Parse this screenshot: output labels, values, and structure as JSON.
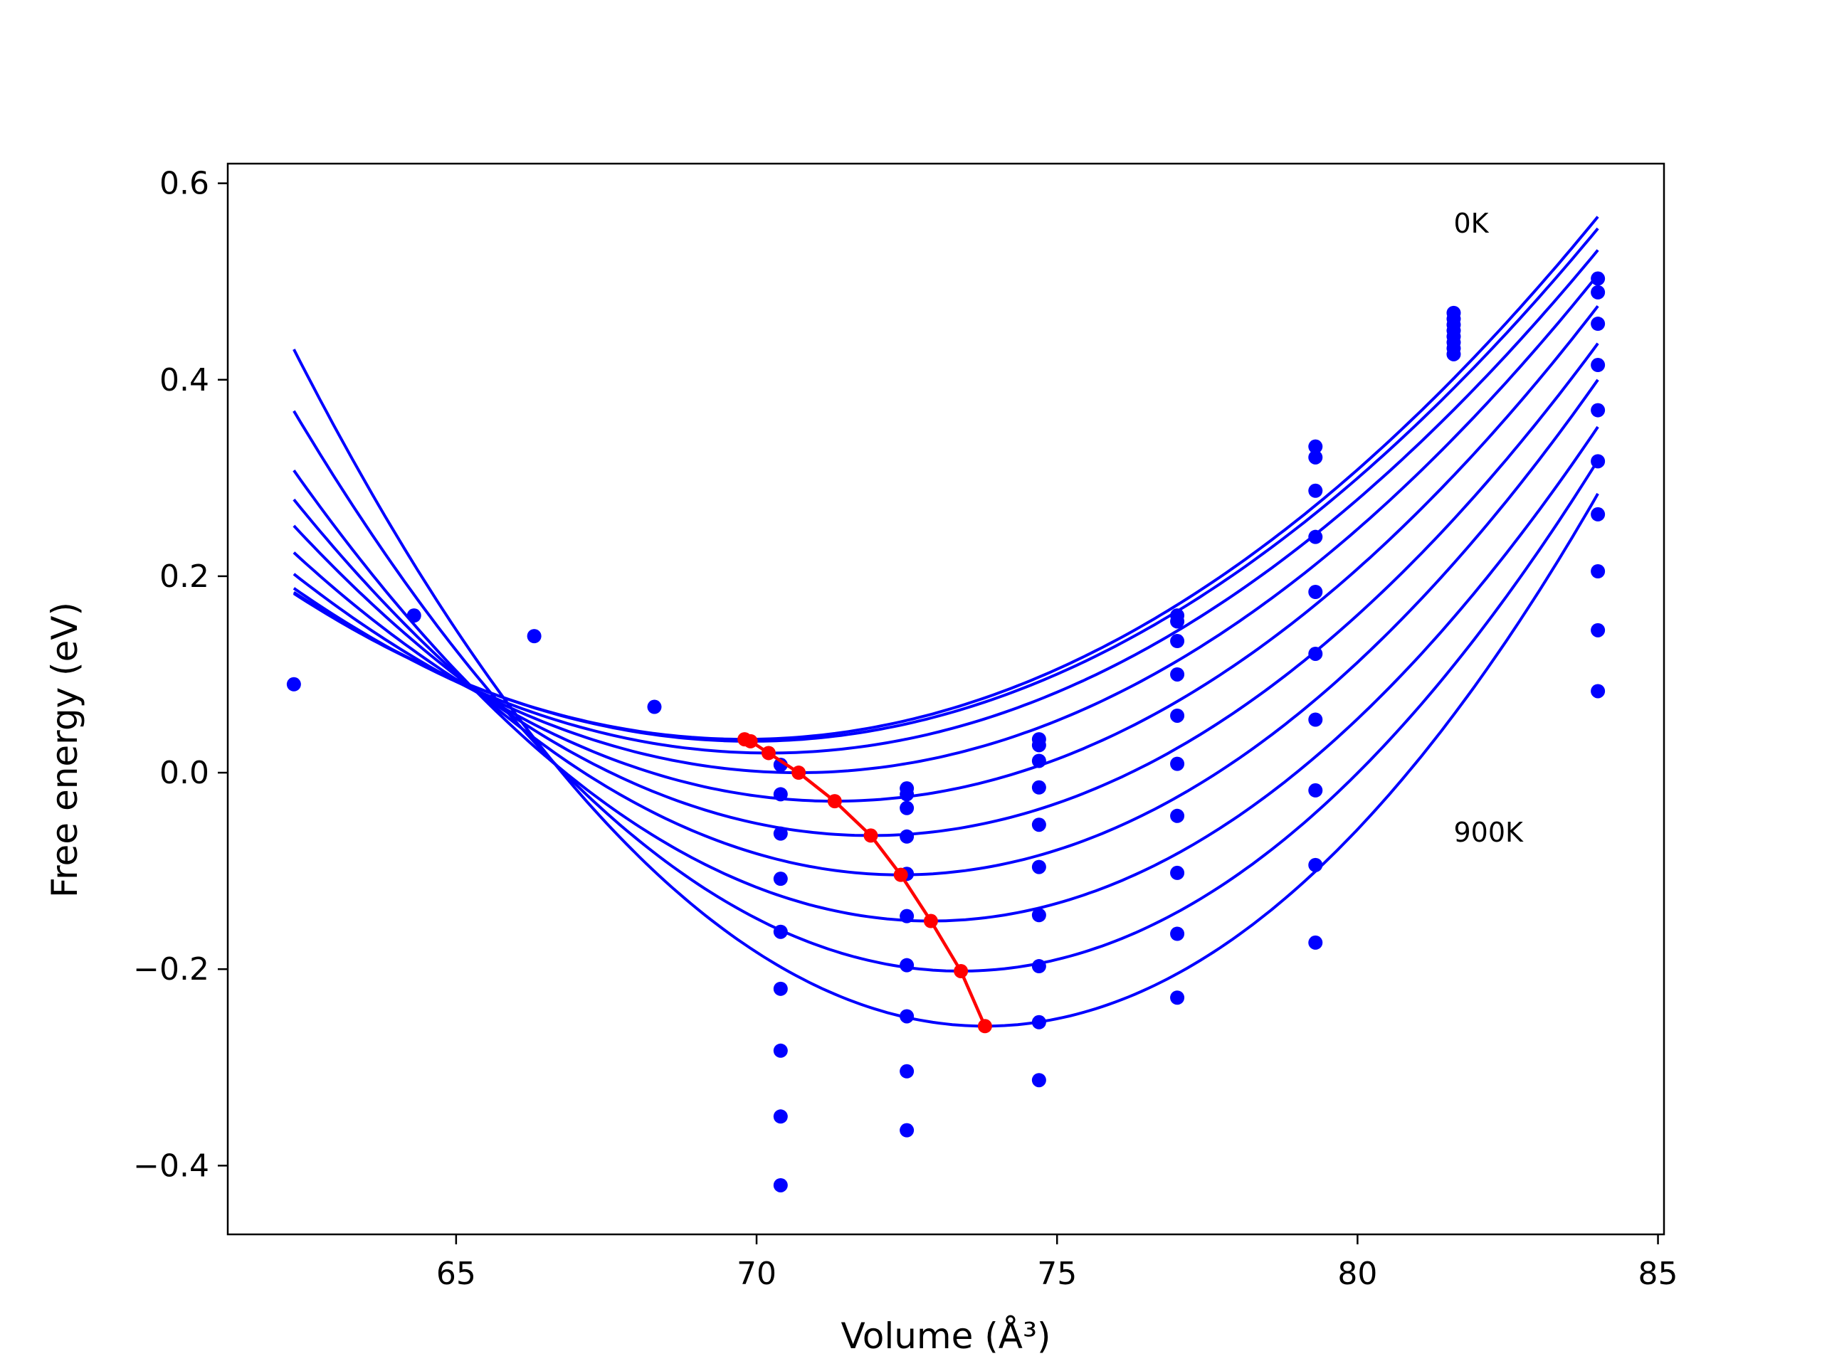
{
  "chart_data": {
    "type": "scatter",
    "xlabel": "Volume (Å³)",
    "ylabel": "Free energy (eV)",
    "xlim": [
      61.2,
      85.1
    ],
    "ylim": [
      -0.47,
      0.62
    ],
    "xticks": [
      {
        "value": 65,
        "label": "65"
      },
      {
        "value": 70,
        "label": "70"
      },
      {
        "value": 75,
        "label": "75"
      },
      {
        "value": 80,
        "label": "80"
      },
      {
        "value": 85,
        "label": "85"
      }
    ],
    "yticks": [
      {
        "value": -0.4,
        "label": "−0.4"
      },
      {
        "value": -0.2,
        "label": "−0.2"
      },
      {
        "value": 0.0,
        "label": "0.0"
      },
      {
        "value": 0.2,
        "label": "0.2"
      },
      {
        "value": 0.4,
        "label": "0.4"
      },
      {
        "value": 0.6,
        "label": "0.6"
      }
    ],
    "grid": false,
    "annotations": [
      {
        "text": "0K",
        "x": 81.6,
        "y": 0.56
      },
      {
        "text": "900K",
        "x": 81.6,
        "y": -0.06
      }
    ],
    "colors": {
      "fit_curves": "#0000ff",
      "points": "#0000ff",
      "minimum_path": "#ff0000"
    },
    "fit_curves": {
      "x_range": [
        62.3,
        84.0
      ],
      "curves": [
        {
          "min_x": 69.8,
          "min_y": 0.034,
          "y_at_84": 0.566
        },
        {
          "min_x": 69.9,
          "min_y": 0.032,
          "y_at_84": 0.554
        },
        {
          "min_x": 70.2,
          "min_y": 0.02,
          "y_at_84": 0.532
        },
        {
          "min_x": 70.7,
          "min_y": 0.0,
          "y_at_84": 0.507
        },
        {
          "min_x": 71.3,
          "min_y": -0.029,
          "y_at_84": 0.475
        },
        {
          "min_x": 71.9,
          "min_y": -0.064,
          "y_at_84": 0.437
        },
        {
          "min_x": 72.4,
          "min_y": -0.104,
          "y_at_84": 0.4
        },
        {
          "min_x": 72.9,
          "min_y": -0.151,
          "y_at_84": 0.352
        },
        {
          "min_x": 73.4,
          "min_y": -0.202,
          "y_at_84": 0.318
        },
        {
          "min_x": 73.8,
          "min_y": -0.258,
          "y_at_84": 0.284
        }
      ]
    },
    "points": [
      {
        "x": 62.3,
        "y": 0.09
      },
      {
        "x": 64.3,
        "y": 0.16
      },
      {
        "x": 66.3,
        "y": 0.139
      },
      {
        "x": 68.3,
        "y": 0.067
      },
      {
        "x": 70.4,
        "y": 0.008
      },
      {
        "x": 70.4,
        "y": -0.022
      },
      {
        "x": 70.4,
        "y": -0.062
      },
      {
        "x": 70.4,
        "y": -0.108
      },
      {
        "x": 70.4,
        "y": -0.162
      },
      {
        "x": 70.4,
        "y": -0.22
      },
      {
        "x": 70.4,
        "y": -0.283
      },
      {
        "x": 70.4,
        "y": -0.35
      },
      {
        "x": 70.4,
        "y": -0.42
      },
      {
        "x": 72.5,
        "y": -0.016
      },
      {
        "x": 72.5,
        "y": -0.022
      },
      {
        "x": 72.5,
        "y": -0.036
      },
      {
        "x": 72.5,
        "y": -0.065
      },
      {
        "x": 72.5,
        "y": -0.103
      },
      {
        "x": 72.5,
        "y": -0.146
      },
      {
        "x": 72.5,
        "y": -0.196
      },
      {
        "x": 72.5,
        "y": -0.248
      },
      {
        "x": 72.5,
        "y": -0.304
      },
      {
        "x": 72.5,
        "y": -0.364
      },
      {
        "x": 74.7,
        "y": 0.034
      },
      {
        "x": 74.7,
        "y": 0.028
      },
      {
        "x": 74.7,
        "y": 0.012
      },
      {
        "x": 74.7,
        "y": -0.015
      },
      {
        "x": 74.7,
        "y": -0.053
      },
      {
        "x": 74.7,
        "y": -0.096
      },
      {
        "x": 74.7,
        "y": -0.145
      },
      {
        "x": 74.7,
        "y": -0.197
      },
      {
        "x": 74.7,
        "y": -0.254
      },
      {
        "x": 74.7,
        "y": -0.313
      },
      {
        "x": 77.0,
        "y": 0.16
      },
      {
        "x": 77.0,
        "y": 0.154
      },
      {
        "x": 77.0,
        "y": 0.134
      },
      {
        "x": 77.0,
        "y": 0.1
      },
      {
        "x": 77.0,
        "y": 0.058
      },
      {
        "x": 77.0,
        "y": 0.009
      },
      {
        "x": 77.0,
        "y": -0.044
      },
      {
        "x": 77.0,
        "y": -0.102
      },
      {
        "x": 77.0,
        "y": -0.164
      },
      {
        "x": 77.0,
        "y": -0.229
      },
      {
        "x": 79.3,
        "y": 0.332
      },
      {
        "x": 79.3,
        "y": 0.321
      },
      {
        "x": 79.3,
        "y": 0.287
      },
      {
        "x": 79.3,
        "y": 0.24
      },
      {
        "x": 79.3,
        "y": 0.184
      },
      {
        "x": 79.3,
        "y": 0.121
      },
      {
        "x": 79.3,
        "y": 0.054
      },
      {
        "x": 79.3,
        "y": -0.018
      },
      {
        "x": 79.3,
        "y": -0.094
      },
      {
        "x": 79.3,
        "y": -0.173
      },
      {
        "x": 81.6,
        "y": 0.468
      },
      {
        "x": 81.6,
        "y": 0.462
      },
      {
        "x": 81.6,
        "y": 0.456
      },
      {
        "x": 81.6,
        "y": 0.45
      },
      {
        "x": 81.6,
        "y": 0.444
      },
      {
        "x": 81.6,
        "y": 0.438
      },
      {
        "x": 81.6,
        "y": 0.432
      },
      {
        "x": 81.6,
        "y": 0.426
      },
      {
        "x": 84.0,
        "y": 0.503
      },
      {
        "x": 84.0,
        "y": 0.489
      },
      {
        "x": 84.0,
        "y": 0.457
      },
      {
        "x": 84.0,
        "y": 0.415
      },
      {
        "x": 84.0,
        "y": 0.369
      },
      {
        "x": 84.0,
        "y": 0.317
      },
      {
        "x": 84.0,
        "y": 0.263
      },
      {
        "x": 84.0,
        "y": 0.205
      },
      {
        "x": 84.0,
        "y": 0.145
      },
      {
        "x": 84.0,
        "y": 0.083
      }
    ],
    "minimum_path": [
      {
        "x": 69.8,
        "y": 0.034
      },
      {
        "x": 69.9,
        "y": 0.032
      },
      {
        "x": 70.2,
        "y": 0.02
      },
      {
        "x": 70.7,
        "y": 0.0
      },
      {
        "x": 71.3,
        "y": -0.029
      },
      {
        "x": 71.9,
        "y": -0.064
      },
      {
        "x": 72.4,
        "y": -0.104
      },
      {
        "x": 72.9,
        "y": -0.151
      },
      {
        "x": 73.4,
        "y": -0.202
      },
      {
        "x": 73.8,
        "y": -0.258
      }
    ]
  }
}
